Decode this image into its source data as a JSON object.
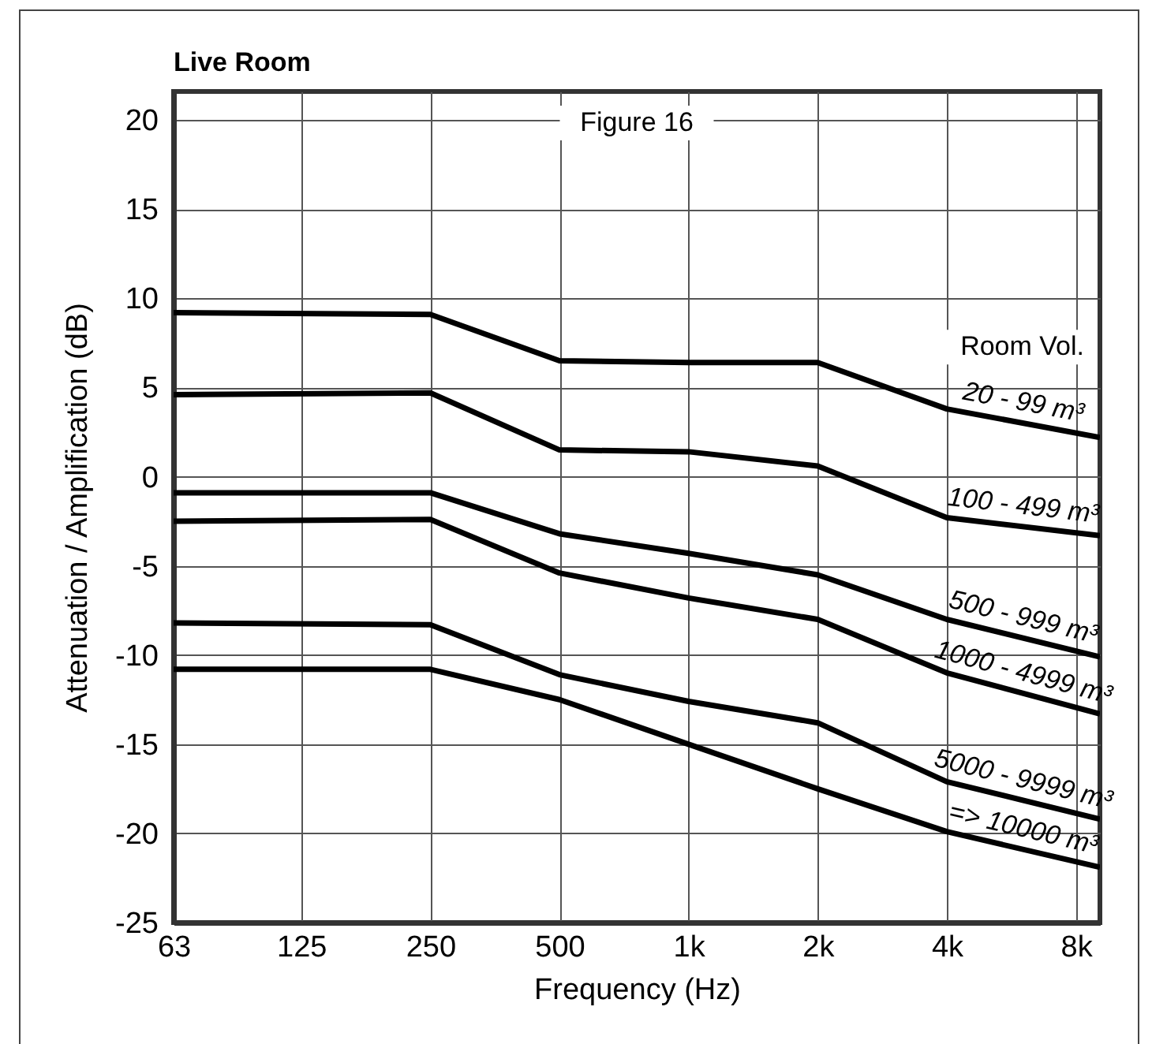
{
  "chart_data": {
    "type": "line",
    "title": "Live Room",
    "xlabel": "Frequency (Hz)",
    "ylabel": "Attenuation / Amplification (dB)",
    "legend_title": "Room Vol.",
    "annotations": [
      "Figure 16"
    ],
    "x": [
      63,
      250,
      500,
      1000,
      2000,
      4000,
      9100
    ],
    "series": [
      {
        "name": "20 - 99 m³",
        "color": "#000000",
        "values": [
          9.2,
          9.1,
          6.5,
          6.4,
          6.4,
          3.8,
          2.2
        ]
      },
      {
        "name": "100 - 499 m³",
        "color": "#000000",
        "values": [
          4.6,
          4.7,
          1.5,
          1.4,
          0.6,
          -2.3,
          -3.3
        ]
      },
      {
        "name": "500 - 999 m³",
        "color": "#000000",
        "values": [
          -0.9,
          -0.9,
          -3.2,
          -4.3,
          -5.5,
          -8.0,
          -10.1
        ]
      },
      {
        "name": "1000 - 4999 m³",
        "color": "#000000",
        "values": [
          -2.5,
          -2.4,
          -5.4,
          -6.8,
          -8.0,
          -11.0,
          -13.3
        ]
      },
      {
        "name": "5000 - 9999 m³",
        "color": "#000000",
        "values": [
          -8.2,
          -8.3,
          -11.1,
          -12.6,
          -13.8,
          -17.1,
          -19.2
        ]
      },
      {
        "name": "=> 10000 m³",
        "color": "#000000",
        "values": [
          -10.8,
          -10.8,
          -12.5,
          -15.0,
          -17.5,
          -19.9,
          -21.9
        ]
      }
    ],
    "xlim": [
      63,
      9100
    ],
    "xticks": [
      63,
      125,
      250,
      500,
      {
        "value": 1000,
        "label": "1k"
      },
      {
        "value": 2000,
        "label": "2k"
      },
      {
        "value": 4000,
        "label": "4k"
      },
      {
        "value": 8000,
        "label": "8k"
      }
    ],
    "ylim": [
      -25,
      21.6
    ],
    "yticks": [
      -25,
      -20,
      -15,
      -10,
      -5,
      0,
      5,
      10,
      15,
      20
    ],
    "log": "x",
    "grid": true,
    "legend": false,
    "marker": "none",
    "line_style": "solid"
  }
}
